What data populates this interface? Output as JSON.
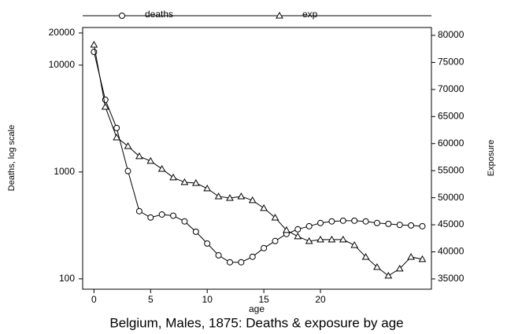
{
  "chart_data": {
    "type": "line",
    "title": "Belgium, Males, 1875:  Deaths & exposure by age",
    "xlabel": "age",
    "ylabel": "Deaths, log scale",
    "y2label": "Exposure",
    "x": [
      0,
      1,
      2,
      3,
      4,
      5,
      6,
      7,
      8,
      9,
      10,
      11,
      12,
      13,
      14,
      15,
      16,
      17,
      18,
      19,
      20,
      21,
      22,
      23,
      24,
      25,
      26,
      27,
      28,
      29
    ],
    "xlim": [
      -1,
      29.8
    ],
    "xticks": [
      0,
      5,
      10,
      15,
      20
    ],
    "ylim": [
      80,
      22500
    ],
    "yticks": [
      100,
      1000,
      10000,
      20000
    ],
    "ylog": true,
    "y2lim": [
      33100,
      81450
    ],
    "y2ticks": [
      35000,
      40000,
      45000,
      50000,
      55000,
      60000,
      65000,
      70000,
      75000,
      80000
    ],
    "legend": "top",
    "series": [
      {
        "name": "deaths",
        "color": "#000000",
        "marker": "circle",
        "values": [
          13300,
          4740,
          2580,
          1020,
          430,
          375,
          400,
          390,
          345,
          276,
          214,
          166,
          143,
          143,
          161,
          194,
          226,
          263,
          291,
          311,
          333,
          345,
          350,
          350,
          345,
          333,
          327,
          320,
          316,
          311
        ]
      },
      {
        "name": "exp",
        "color": "#000000",
        "marker": "triangle",
        "axis": "y2",
        "values": [
          78260,
          66790,
          61130,
          59530,
          57650,
          56780,
          55320,
          53730,
          52860,
          52710,
          51700,
          50240,
          49950,
          50240,
          49520,
          48070,
          46320,
          44000,
          42840,
          41970,
          42260,
          42260,
          42260,
          41240,
          39060,
          37180,
          35580,
          36890,
          39060,
          38630
        ]
      }
    ]
  }
}
